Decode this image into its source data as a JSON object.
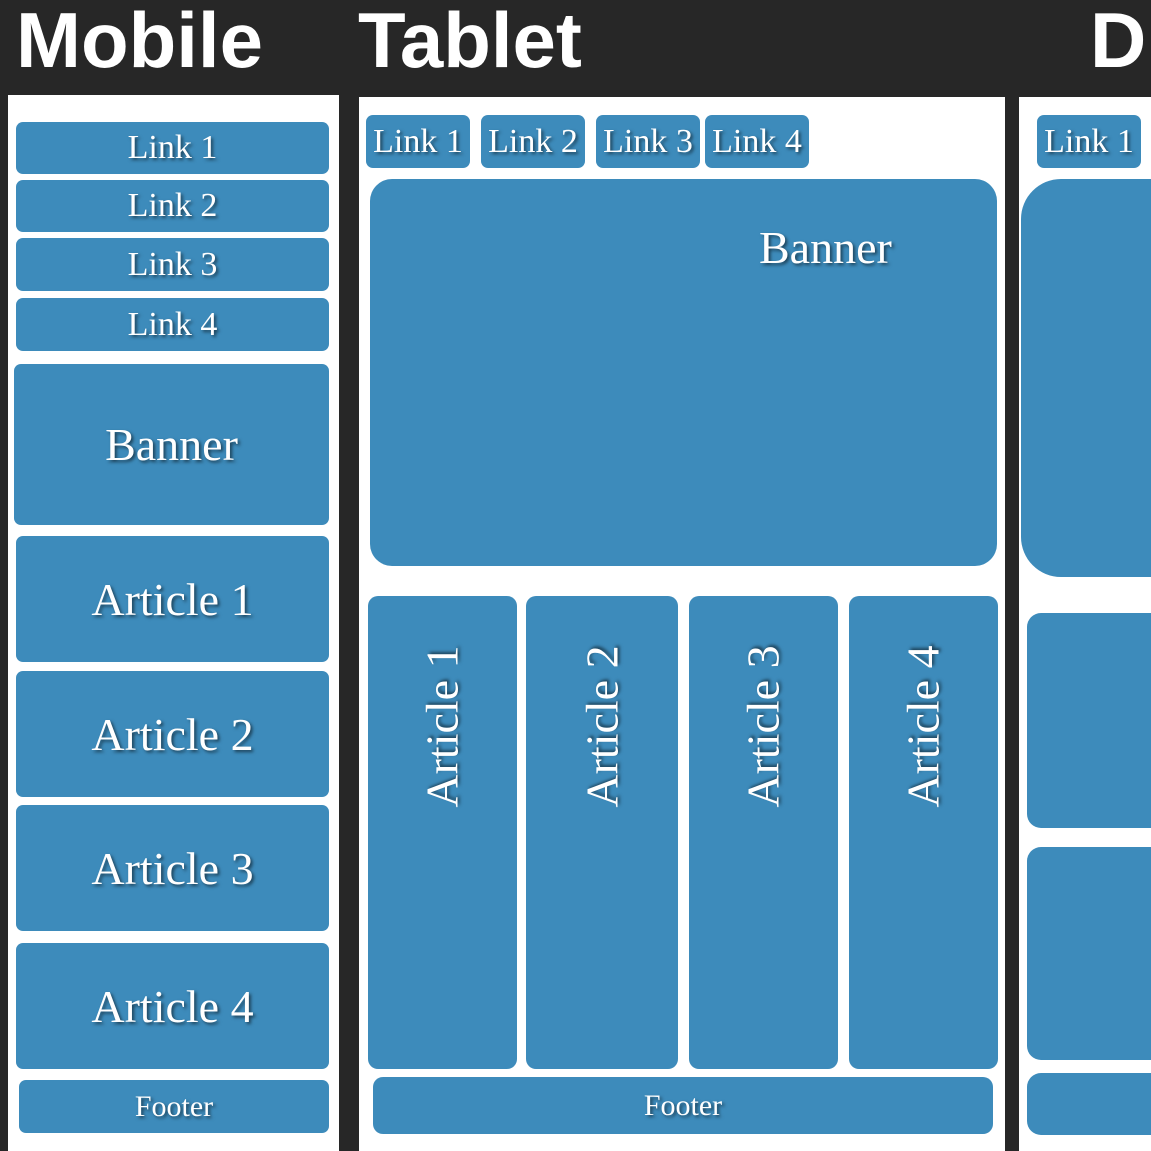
{
  "headings": {
    "mobile": "Mobile",
    "tablet": "Tablet",
    "desktop": "D"
  },
  "mobile": {
    "links": [
      "Link 1",
      "Link 2",
      "Link 3",
      "Link 4"
    ],
    "banner": "Banner",
    "articles": [
      "Article 1",
      "Article 2",
      "Article 3",
      "Article 4"
    ],
    "footer": "Footer"
  },
  "tablet": {
    "links": [
      "Link 1",
      "Link 2",
      "Link 3",
      "Link 4"
    ],
    "banner": "Banner",
    "articles": [
      "Article 1",
      "Article 2",
      "Article 3",
      "Article 4"
    ],
    "footer": "Footer"
  },
  "desktop": {
    "links": [
      "Link 1"
    ]
  },
  "colors": {
    "background": "#272727",
    "block": "#3d8bbb",
    "panel": "#ffffff",
    "text": "#ffffff"
  }
}
